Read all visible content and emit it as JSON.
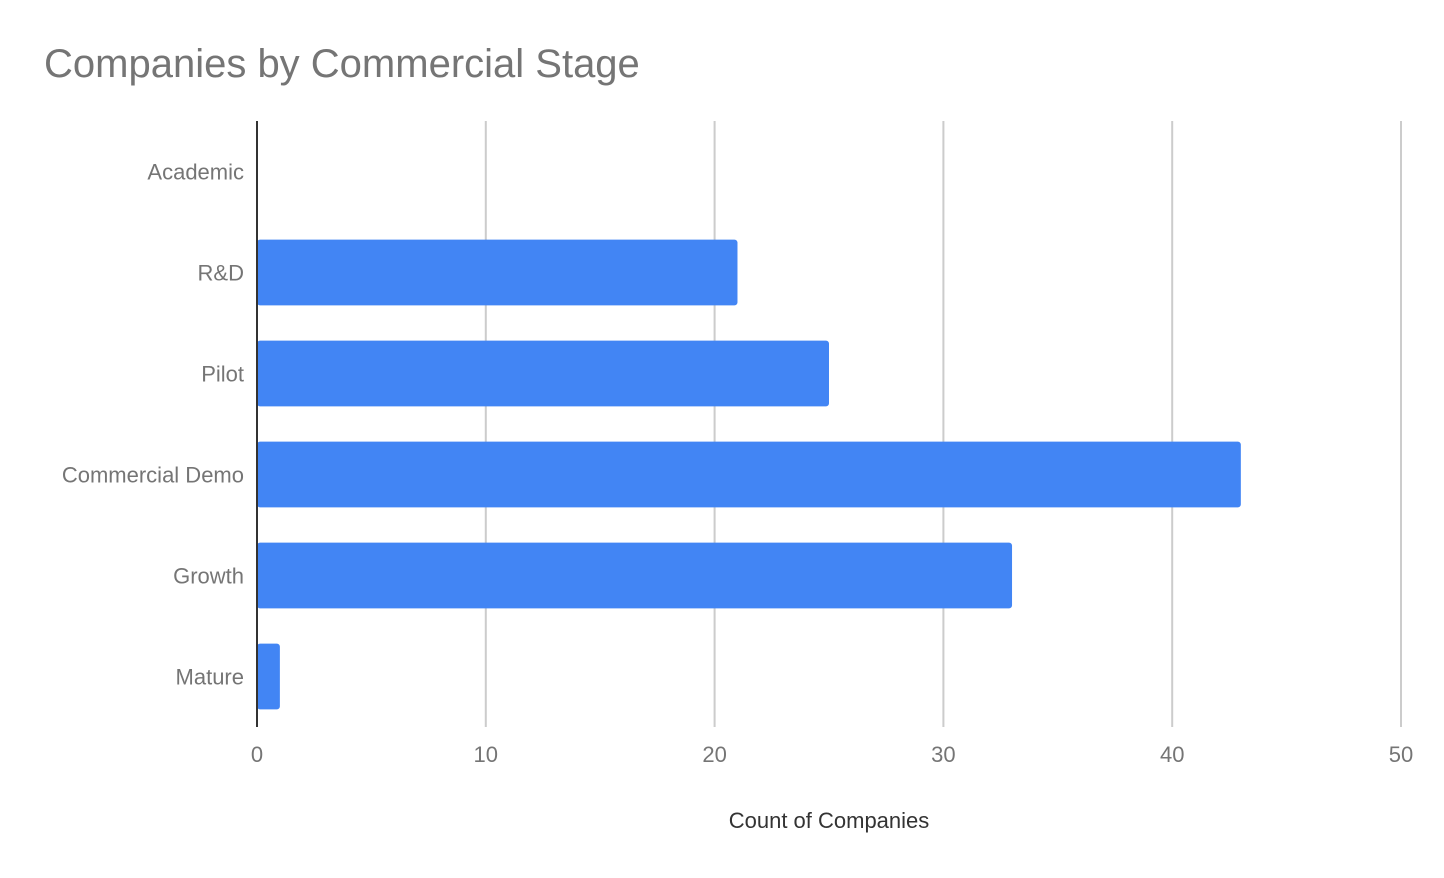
{
  "chart_data": {
    "type": "bar",
    "orientation": "horizontal",
    "title": "Companies by Commercial Stage",
    "xlabel": "Count of Companies",
    "ylabel": "",
    "categories": [
      "Academic",
      "R&D",
      "Pilot",
      "Commercial Demo",
      "Growth",
      "Mature"
    ],
    "values": [
      0,
      21,
      25,
      43,
      33,
      1
    ],
    "xlim": [
      0,
      50
    ],
    "xticks": [
      0,
      10,
      20,
      30,
      40,
      50
    ],
    "grid": true,
    "legend": "none",
    "colors": {
      "bar": "#4285f4",
      "grid": "#cccccc",
      "axis": "#333333",
      "text": "#757575",
      "axis_title": "#333333"
    }
  }
}
